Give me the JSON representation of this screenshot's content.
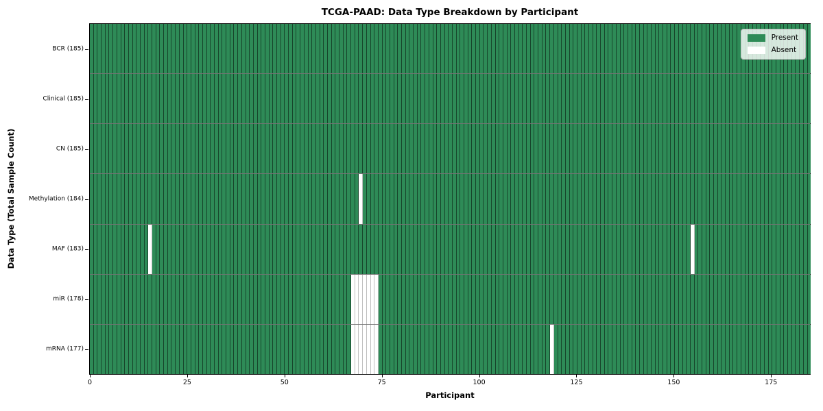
{
  "chart_data": {
    "type": "heatmap",
    "title": "TCGA-PAAD: Data Type Breakdown by Participant",
    "xlabel": "Participant",
    "ylabel": "Data Type (Total Sample Count)",
    "n_participants": 185,
    "xlim": [
      0,
      185
    ],
    "x_ticks": [
      0,
      25,
      50,
      75,
      100,
      125,
      150,
      175
    ],
    "grid": "cell-borders",
    "colors": {
      "present": "#2e8b57",
      "absent": "#ffffff"
    },
    "legend": {
      "position": "upper right",
      "entries": [
        {
          "label": "Present",
          "color": "#2e8b57"
        },
        {
          "label": "Absent",
          "color": "#ffffff"
        }
      ]
    },
    "rows": [
      {
        "data_type": "BCR",
        "label": "BCR (185)",
        "total": 185,
        "absent_participants": []
      },
      {
        "data_type": "Clinical",
        "label": "Clinical (185)",
        "total": 185,
        "absent_participants": []
      },
      {
        "data_type": "CN",
        "label": "CN (185)",
        "total": 185,
        "absent_participants": []
      },
      {
        "data_type": "Methylation",
        "label": "Methylation (184)",
        "total": 184,
        "absent_participants": [
          69
        ]
      },
      {
        "data_type": "MAF",
        "label": "MAF (183)",
        "total": 183,
        "absent_participants": [
          15,
          154
        ]
      },
      {
        "data_type": "miR",
        "label": "miR (178)",
        "total": 178,
        "absent_participants": [
          67,
          68,
          69,
          70,
          71,
          72,
          73
        ]
      },
      {
        "data_type": "mRNA",
        "label": "mRNA (177)",
        "total": 177,
        "absent_participants": [
          67,
          68,
          69,
          70,
          71,
          72,
          73,
          118
        ]
      }
    ]
  }
}
